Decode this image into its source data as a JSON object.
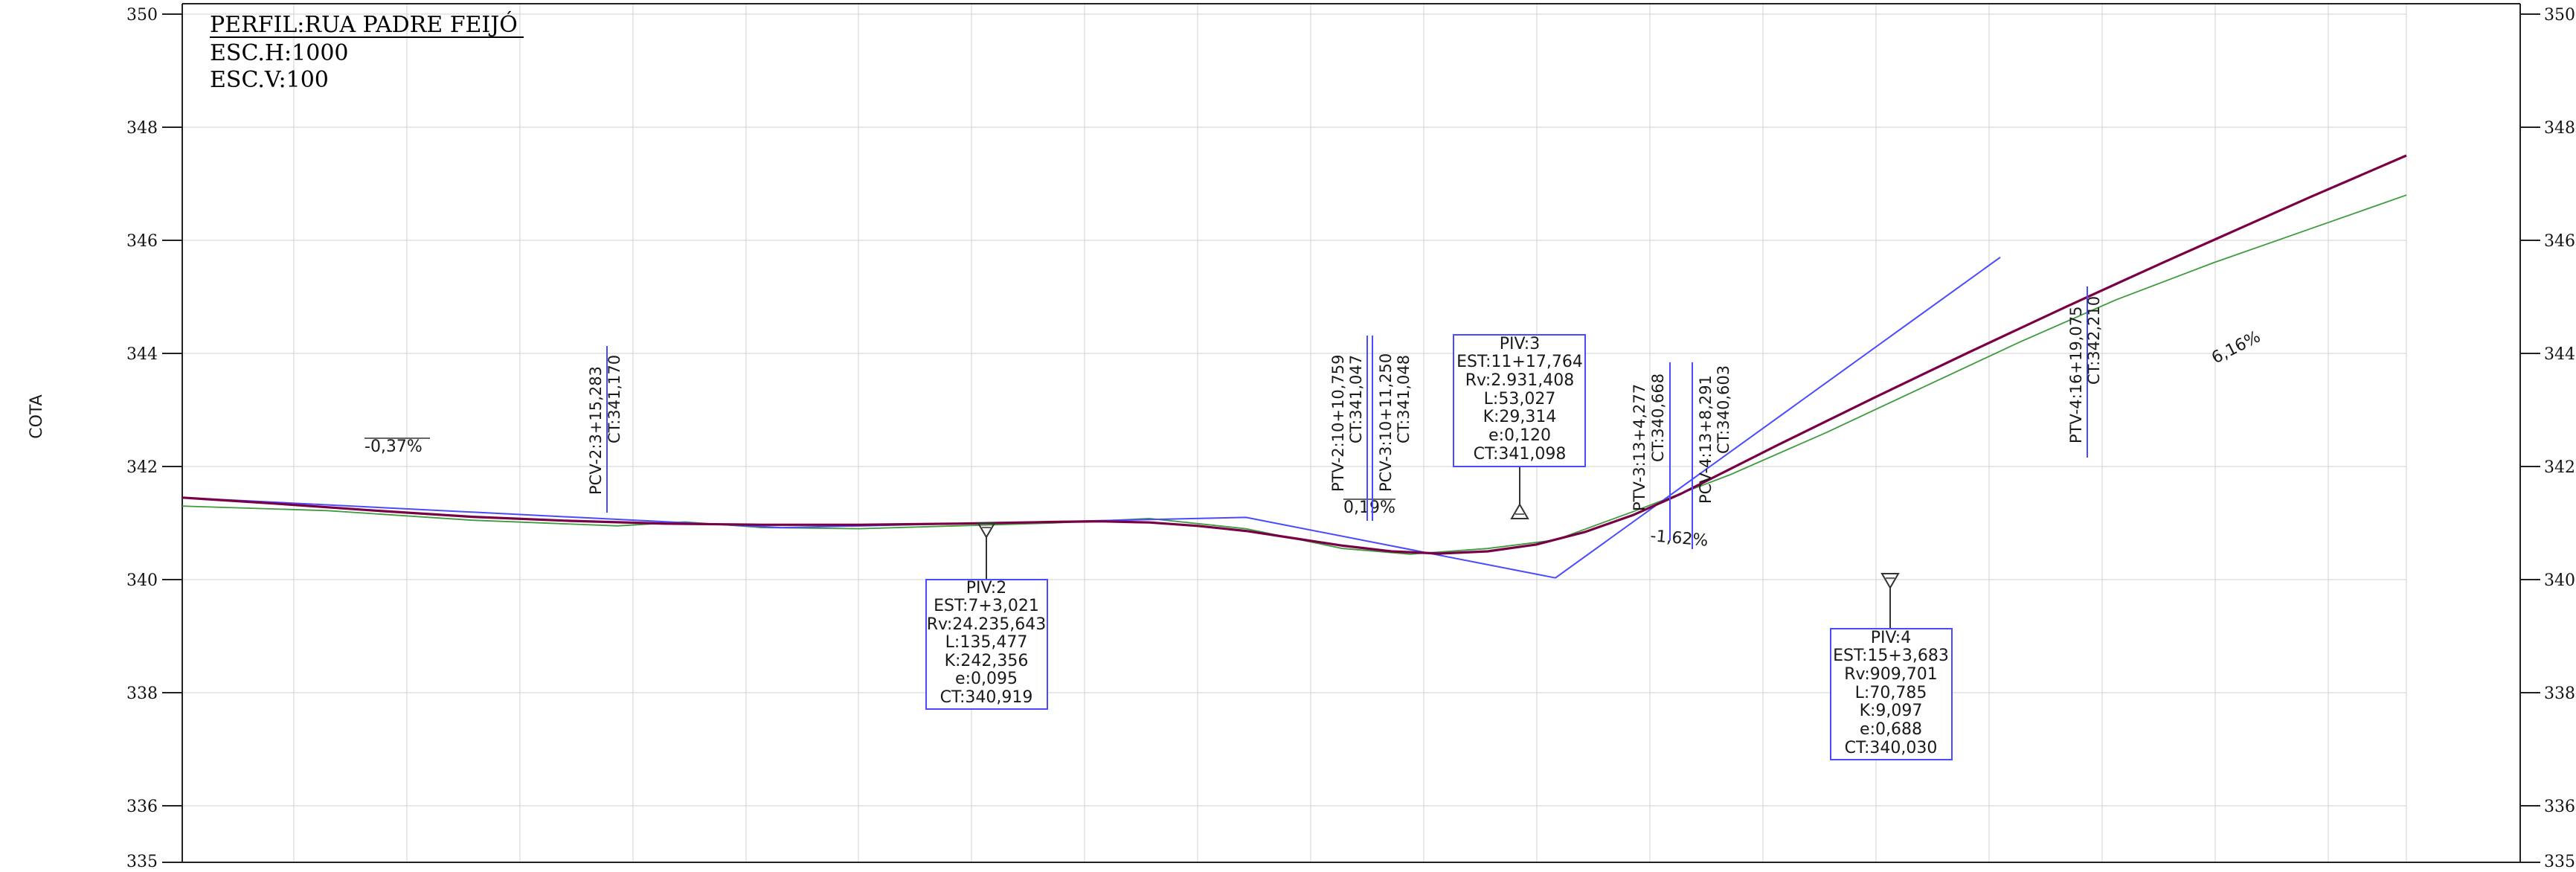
{
  "title": {
    "name": "PERFIL:RUA PADRE FEIJÓ",
    "h_scale": "ESC.H:1000",
    "v_scale": "ESC.V:100"
  },
  "axis": {
    "ylabel": "COTA",
    "ylim": [
      335,
      350
    ],
    "ticks_left": [
      "350",
      "348",
      "346",
      "344",
      "342",
      "340",
      "338",
      "336",
      "335"
    ],
    "ticks_right": [
      "350",
      "348",
      "346",
      "344",
      "342",
      "340",
      "338",
      "336",
      "335"
    ]
  },
  "grades": [
    "-0,37%",
    "0,19%",
    "-1,62%",
    "6,16%"
  ],
  "curve_points": {
    "pcv2": [
      "PCV-2:3+15,283",
      "CT:341,170"
    ],
    "ptv2": [
      "PTV-2:10+10,759",
      "CT:341,047"
    ],
    "pcv3": [
      "PCV-3:10+11,250",
      "CT:341,048"
    ],
    "ptv3": [
      "PTV-3:13+4,277",
      "CT:340,668"
    ],
    "pcv4": [
      "PCV-4:13+8,291",
      "CT:340,603"
    ],
    "ptv4": [
      "PTV-4:16+19,075",
      "CT:342,210"
    ]
  },
  "piv_boxes": {
    "piv2": [
      "PIV:2",
      "EST:7+3,021",
      "Rv:24.235,643",
      "L:135,477",
      "K:242,356",
      "e:0,095",
      "CT:340,919"
    ],
    "piv3": [
      "PIV:3",
      "EST:11+17,764",
      "Rv:2.931,408",
      "L:53,027",
      "K:29,314",
      "e:0,120",
      "CT:341,098"
    ],
    "piv4": [
      "PIV:4",
      "EST:15+3,683",
      "Rv:909,701",
      "L:70,785",
      "K:9,097",
      "e:0,688",
      "CT:340,030"
    ]
  },
  "chart_data": {
    "type": "line",
    "title": "PERFIL:RUA PADRE FEIJÓ",
    "xlabel": "",
    "ylabel": "COTA",
    "ylim": [
      335,
      350
    ],
    "grid": true,
    "series": [
      {
        "key": "design",
        "color": "#7a0046",
        "x": [
          0,
          100,
          200,
          300,
          400,
          500,
          600,
          700,
          800,
          900,
          950,
          1000,
          1050,
          1100,
          1150,
          1200,
          1250,
          1300,
          1350,
          1400,
          1450,
          1500,
          1550,
          1600,
          1650,
          1700,
          1750,
          1800,
          1850,
          1900,
          1950,
          2000,
          2050,
          2100,
          2150,
          2200,
          2250,
          2300
        ],
        "values": [
          341.45,
          341.34,
          341.22,
          341.11,
          341.04,
          340.99,
          340.97,
          340.97,
          340.99,
          341.02,
          341.03,
          341.01,
          340.95,
          340.86,
          340.73,
          340.6,
          340.5,
          340.46,
          340.5,
          340.62,
          340.84,
          341.14,
          341.52,
          341.95,
          342.38,
          342.8,
          343.22,
          343.63,
          344.04,
          344.44,
          344.84,
          345.23,
          345.62,
          346.0,
          346.38,
          346.76,
          347.13,
          347.5
        ]
      },
      {
        "key": "terrain",
        "color": "#3e9b3e",
        "x": [
          0,
          150,
          300,
          450,
          520,
          600,
          700,
          800,
          900,
          1000,
          1100,
          1200,
          1270,
          1350,
          1420,
          1500,
          1600,
          1700,
          1800,
          1900,
          2000,
          2100,
          2200,
          2300
        ],
        "values": [
          341.3,
          341.22,
          341.05,
          340.95,
          341.02,
          340.92,
          340.9,
          340.95,
          341.0,
          341.08,
          340.9,
          340.55,
          340.45,
          340.55,
          340.7,
          341.2,
          341.85,
          342.6,
          343.4,
          344.2,
          344.95,
          345.6,
          346.2,
          346.8
        ]
      },
      {
        "key": "tangents",
        "color": "#4a4aff",
        "x": [
          0,
          620,
          1100,
          1420,
          1880
        ],
        "values": [
          341.45,
          340.92,
          341.1,
          340.03,
          345.7
        ]
      }
    ]
  }
}
